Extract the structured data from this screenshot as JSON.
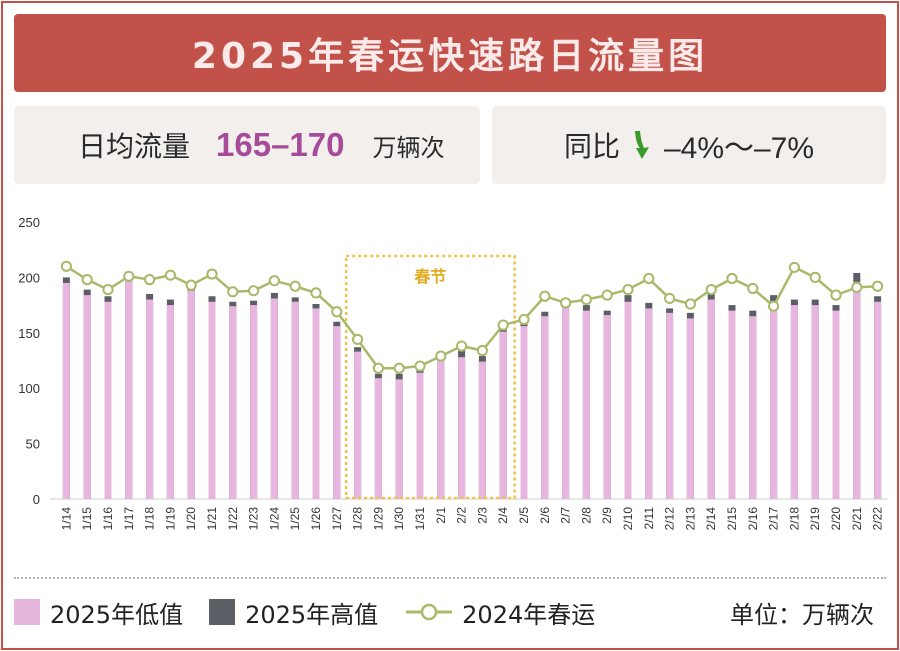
{
  "header": {
    "title": "2025年春运快速路日流量图"
  },
  "stats": {
    "avg_label": "日均流量",
    "avg_value": "165–170",
    "avg_unit": "万辆次",
    "yoy_label": "同比",
    "yoy_value": "–4%～–7%",
    "yoy_icon": "down-arrow-icon",
    "yoy_color": "#3a9a2a"
  },
  "legend": {
    "low_label": "2025年低值",
    "high_label": "2025年高值",
    "prev_label": "2024年春运",
    "unit_label": "单位：万辆次"
  },
  "colors": {
    "low": "#e7b6df",
    "high": "#5c5e66",
    "prev": "#a8b96a",
    "festival_box": "#efc24a",
    "festival_text": "#e2ab1c"
  },
  "chart_data": {
    "type": "bar",
    "title": "2025年春运快速路日流量图",
    "ylabel": "",
    "xlabel": "",
    "ylim": [
      0,
      250
    ],
    "yticks": [
      0,
      50,
      100,
      150,
      200,
      250
    ],
    "grid": false,
    "legend_position": "bottom",
    "categories": [
      "1/14",
      "1/15",
      "1/16",
      "1/17",
      "1/18",
      "1/19",
      "1/20",
      "1/21",
      "1/22",
      "1/23",
      "1/24",
      "1/25",
      "1/26",
      "1/27",
      "1/28",
      "1/29",
      "1/30",
      "1/31",
      "2/1",
      "2/2",
      "2/3",
      "2/4",
      "2/5",
      "2/6",
      "2/7",
      "2/8",
      "2/9",
      "2/10",
      "2/11",
      "2/12",
      "2/13",
      "2/14",
      "2/15",
      "2/16",
      "2/17",
      "2/18",
      "2/19",
      "2/20",
      "2/21",
      "2/22"
    ],
    "series": [
      {
        "name": "2025年低值",
        "values": [
          195,
          184,
          178,
          200,
          180,
          175,
          188,
          178,
          174,
          175,
          181,
          178,
          172,
          156,
          133,
          109,
          108,
          114,
          126,
          128,
          124,
          151,
          156,
          165,
          173,
          170,
          166,
          178,
          172,
          168,
          163,
          180,
          170,
          165,
          178,
          175,
          175,
          170,
          196,
          178
        ]
      },
      {
        "name": "2025年高值",
        "values": [
          200,
          189,
          183,
          205,
          185,
          180,
          193,
          183,
          178,
          179,
          186,
          182,
          176,
          160,
          137,
          113,
          113,
          118,
          130,
          134,
          129,
          156,
          159,
          169,
          178,
          175,
          170,
          184,
          177,
          172,
          168,
          185,
          175,
          170,
          184,
          180,
          180,
          175,
          204,
          183
        ]
      },
      {
        "name": "2024年春运",
        "values": [
          210,
          198,
          189,
          201,
          198,
          202,
          193,
          203,
          187,
          188,
          197,
          192,
          186,
          169,
          144,
          118,
          118,
          120,
          129,
          138,
          134,
          157,
          162,
          183,
          177,
          180,
          184,
          189,
          199,
          181,
          176,
          189,
          199,
          190,
          174,
          209,
          200,
          184,
          191,
          192
        ]
      }
    ],
    "annotation": {
      "label": "春节",
      "from": "1/28",
      "to": "2/4"
    }
  }
}
